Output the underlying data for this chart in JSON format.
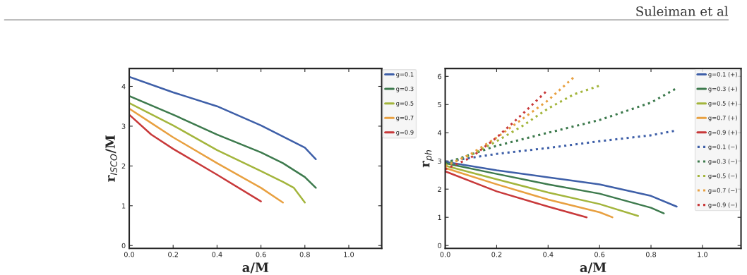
{
  "chart_data": [
    {
      "type": "line",
      "xlabel": "a/M",
      "ylabel": "r$_{ISCO}$/M",
      "annotations": [
        "Suleiman et al"
      ],
      "legend": "right",
      "grid": false,
      "line_style": "solid",
      "xlim": [
        0,
        1.15
      ],
      "ylim": [
        -0.07,
        4.45
      ],
      "xticks": [
        {
          "value": 0,
          "label": "0.0"
        },
        {
          "value": 0.2,
          "label": "0.2"
        },
        {
          "value": 0.4,
          "label": "0.4"
        },
        {
          "value": 0.6,
          "label": "0.6"
        },
        {
          "value": 0.8,
          "label": "0.8"
        },
        {
          "value": 1.0,
          "label": "1.0"
        }
      ],
      "yticks": [
        0,
        1,
        2,
        3,
        4
      ],
      "series": [
        {
          "name": "g=0.1",
          "color": "#3e5fa8",
          "x": [
            0,
            0.2,
            0.4,
            0.6,
            0.8,
            0.85
          ],
          "values": [
            4.24,
            3.85,
            3.5,
            3.02,
            2.46,
            2.17
          ]
        },
        {
          "name": "g=0.3",
          "color": "#3d7a4d",
          "x": [
            0,
            0.2,
            0.4,
            0.6,
            0.7,
            0.8,
            0.85
          ],
          "values": [
            3.76,
            3.29,
            2.79,
            2.34,
            2.07,
            1.72,
            1.45
          ]
        },
        {
          "name": "g=0.5",
          "color": "#a3b53c",
          "x": [
            0,
            0.2,
            0.4,
            0.6,
            0.7,
            0.75,
            0.8
          ],
          "values": [
            3.58,
            3.02,
            2.4,
            1.87,
            1.6,
            1.45,
            1.08
          ]
        },
        {
          "name": "g=0.7",
          "color": "#e8a040",
          "x": [
            0,
            0.1,
            0.2,
            0.4,
            0.6,
            0.7
          ],
          "values": [
            3.44,
            3.08,
            2.72,
            2.07,
            1.45,
            1.08
          ]
        },
        {
          "name": "g=0.9",
          "color": "#c8393a",
          "x": [
            0,
            0.1,
            0.2,
            0.4,
            0.6
          ],
          "values": [
            3.29,
            2.79,
            2.43,
            1.78,
            1.11
          ]
        }
      ]
    },
    {
      "type": "line",
      "xlabel": "a/M",
      "ylabel": "r$_{ph}$",
      "legend": "top right",
      "grid": false,
      "xlim": [
        0,
        1.15
      ],
      "ylim": [
        -0.1,
        6.28
      ],
      "xticks": [
        {
          "value": 0,
          "label": "0.0"
        },
        {
          "value": 0.2,
          "label": "0.2"
        },
        {
          "value": 0.4,
          "label": "0.4"
        },
        {
          "value": 0.6,
          "label": "0.6"
        },
        {
          "value": 0.8,
          "label": "0.8"
        },
        {
          "value": 1.0,
          "label": "1.0"
        }
      ],
      "yticks": [
        0,
        1,
        2,
        3,
        4,
        5,
        6
      ],
      "series": [
        {
          "name": "g=0.1 (+)",
          "color": "#3e5fa8",
          "line_style": "solid",
          "x": [
            0,
            0.2,
            0.4,
            0.6,
            0.8,
            0.9
          ],
          "values": [
            2.97,
            2.67,
            2.42,
            2.17,
            1.76,
            1.38
          ]
        },
        {
          "name": "g=0.3 (+)",
          "color": "#3d7a4d",
          "line_style": "solid",
          "x": [
            0,
            0.2,
            0.4,
            0.6,
            0.8,
            0.85
          ],
          "values": [
            2.92,
            2.54,
            2.17,
            1.84,
            1.34,
            1.14
          ]
        },
        {
          "name": "g=0.5 (+)",
          "color": "#a3b53c",
          "line_style": "solid",
          "x": [
            0,
            0.2,
            0.4,
            0.6,
            0.75
          ],
          "values": [
            2.83,
            2.35,
            1.88,
            1.47,
            1.05
          ]
        },
        {
          "name": "g=0.7 (+)",
          "color": "#e8a040",
          "line_style": "solid",
          "x": [
            0,
            0.2,
            0.4,
            0.6,
            0.65
          ],
          "values": [
            2.75,
            2.17,
            1.63,
            1.18,
            1.0
          ]
        },
        {
          "name": "g=0.9 (+)",
          "color": "#c8393a",
          "line_style": "solid",
          "x": [
            0,
            0.2,
            0.4,
            0.55
          ],
          "values": [
            2.63,
            1.92,
            1.38,
            1.0
          ]
        },
        {
          "name": "g=0.1 (−)",
          "color": "#3e5fa8",
          "line_style": "dotted",
          "x": [
            0,
            0.2,
            0.4,
            0.6,
            0.8,
            0.9
          ],
          "values": [
            2.97,
            3.25,
            3.46,
            3.7,
            3.91,
            4.08
          ]
        },
        {
          "name": "g=0.3 (−)",
          "color": "#3d7a4d",
          "line_style": "dotted",
          "x": [
            0,
            0.2,
            0.4,
            0.6,
            0.8,
            0.9
          ],
          "values": [
            2.92,
            3.54,
            4.0,
            4.45,
            5.07,
            5.58
          ]
        },
        {
          "name": "g=0.5 (−)",
          "color": "#a3b53c",
          "line_style": "dotted",
          "x": [
            0,
            0.1,
            0.2,
            0.3,
            0.4,
            0.5,
            0.6
          ],
          "values": [
            2.85,
            3.21,
            3.7,
            4.24,
            4.86,
            5.36,
            5.67
          ]
        },
        {
          "name": "g=0.7 (−)",
          "color": "#e8a040",
          "line_style": "dotted",
          "x": [
            0,
            0.1,
            0.2,
            0.3,
            0.4,
            0.5
          ],
          "values": [
            2.8,
            3.25,
            3.83,
            4.49,
            5.15,
            5.97
          ]
        },
        {
          "name": "g=0.9 (−)",
          "color": "#c8393a",
          "line_style": "dotted",
          "x": [
            0,
            0.1,
            0.2,
            0.3,
            0.4
          ],
          "values": [
            2.7,
            3.12,
            3.83,
            4.66,
            5.53
          ]
        }
      ]
    }
  ]
}
